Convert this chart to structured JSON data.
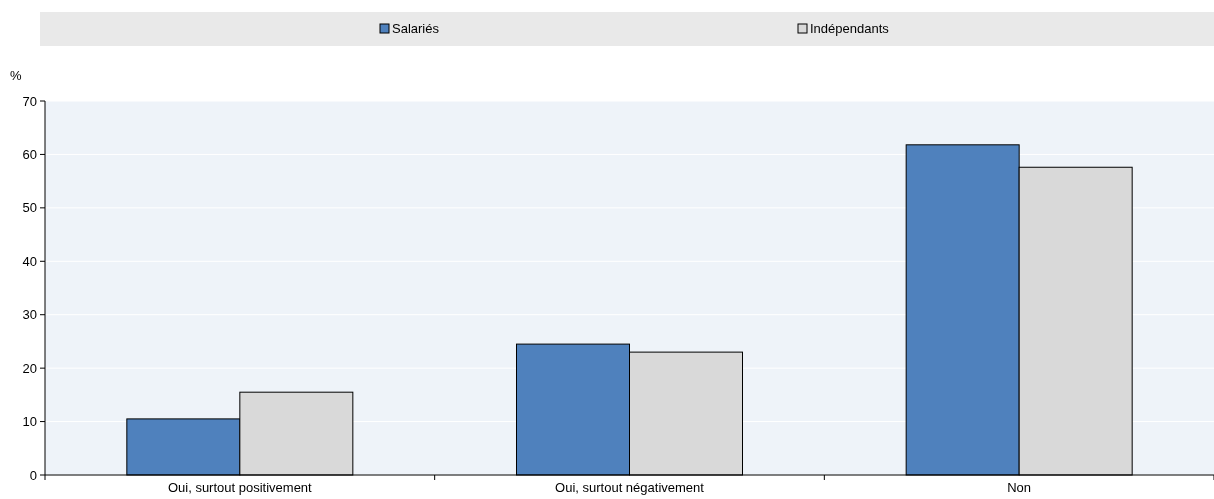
{
  "chart_data": {
    "type": "bar",
    "ylabel": "%",
    "categories": [
      "Oui, surtout positivement",
      "Oui, surtout négativement",
      "Non"
    ],
    "series": [
      {
        "name": "Salariés",
        "color": "#4f81bd",
        "values": [
          10.5,
          24.5,
          61.8
        ]
      },
      {
        "name": "Indépendants",
        "color": "#d9d9d9",
        "values": [
          15.5,
          23.0,
          57.6
        ]
      }
    ],
    "ylim": [
      0,
      70
    ],
    "yticks": [
      0,
      10,
      20,
      30,
      40,
      50,
      60,
      70
    ],
    "grid": "y",
    "legend": "top"
  }
}
